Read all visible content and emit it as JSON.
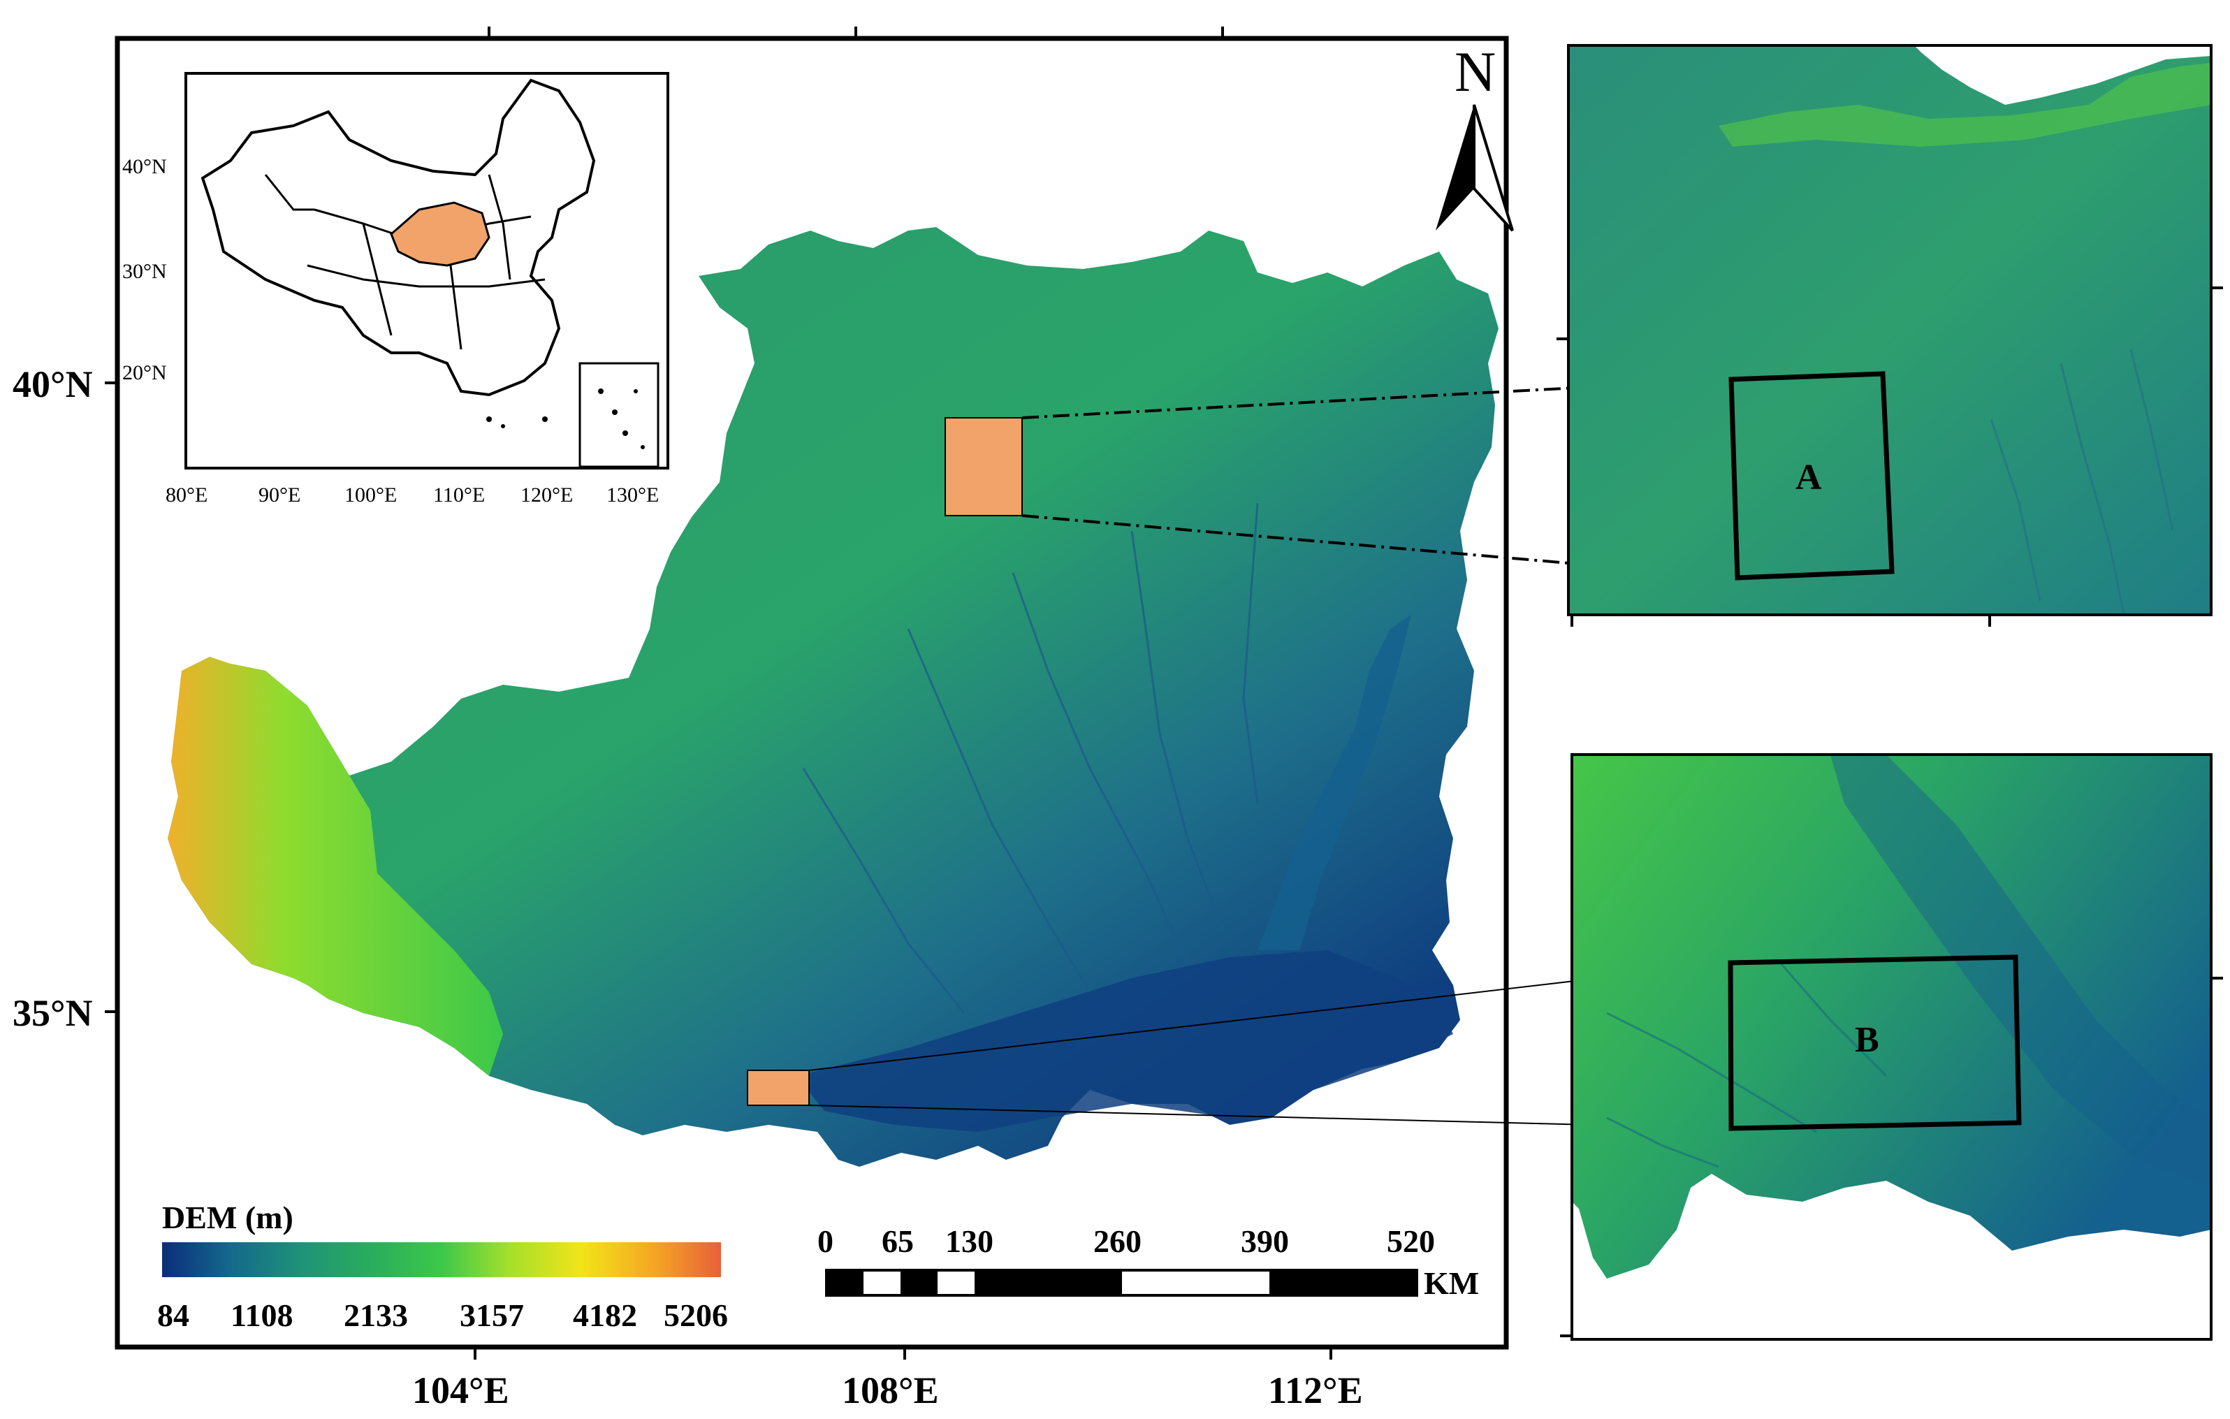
{
  "main_map": {
    "lat_labels": [
      "40°N",
      "35°N"
    ],
    "lon_labels": [
      "104°E",
      "108°E",
      "112°E"
    ]
  },
  "north_arrow": {
    "label": "N"
  },
  "inset_china": {
    "lat_labels": [
      "40°N",
      "30°N",
      "20°N"
    ],
    "lon_labels": [
      "80°E",
      "90°E",
      "100°E",
      "110°E",
      "120°E",
      "130°E"
    ],
    "region_color": "#f2a36a"
  },
  "legend": {
    "title": "DEM (m)",
    "ticks": [
      "84",
      "1108",
      "2133",
      "3157",
      "4182",
      "5206"
    ],
    "colors": [
      "#0b2d7a",
      "#14688c",
      "#2aa06a",
      "#3cc84a",
      "#8ee02c",
      "#f2e419",
      "#f5a623",
      "#e8603a"
    ]
  },
  "scale_bar": {
    "ticks": [
      "0",
      "65",
      "130",
      "260",
      "390",
      "520"
    ],
    "unit": "KM"
  },
  "zoom_panels": [
    {
      "label": "A"
    },
    {
      "label": "B"
    }
  ],
  "colors": {
    "highlight": "#f2a36a",
    "low": "#0b2d7a",
    "mid": "#2aa06a",
    "high": "#e8603a"
  }
}
